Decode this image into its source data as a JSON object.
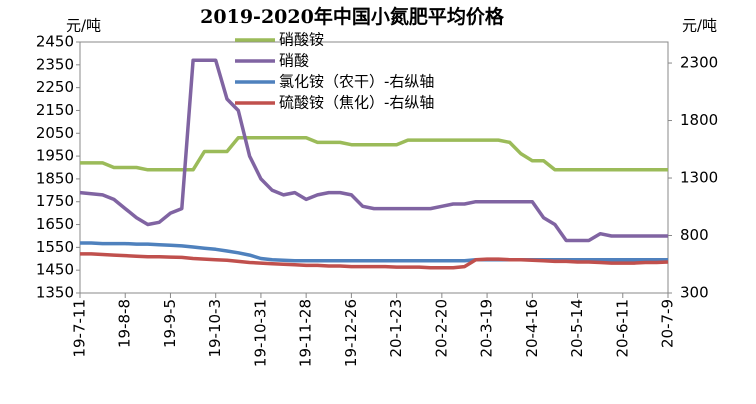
{
  "chart_data": {
    "type": "line",
    "title": "2019-2020年中国小氮肥平均价格",
    "y_unit": "元/吨",
    "y2_unit": "元/吨",
    "categories": [
      "19-7-11",
      null,
      null,
      null,
      "19-8-8",
      null,
      null,
      null,
      "19-9-5",
      null,
      null,
      null,
      "19-10-3",
      null,
      null,
      null,
      "19-10-31",
      null,
      null,
      null,
      "19-11-28",
      null,
      null,
      null,
      "19-12-26",
      null,
      null,
      null,
      "20-1-23",
      null,
      null,
      null,
      "20-2-20",
      null,
      null,
      null,
      "20-3-19",
      null,
      null,
      null,
      "20-4-16",
      null,
      null,
      null,
      "20-5-14",
      null,
      null,
      null,
      "20-6-11",
      null,
      null,
      null,
      "20-7-9"
    ],
    "ylim": [
      1350,
      2450
    ],
    "yticks": [
      1350,
      1450,
      1550,
      1650,
      1750,
      1850,
      1950,
      2050,
      2150,
      2250,
      2350,
      2450
    ],
    "y2lim": [
      300,
      2483
    ],
    "y2ticks": [
      300,
      800,
      1300,
      1800,
      2300
    ],
    "grid": false,
    "legend": "top-left",
    "series": [
      {
        "name": "硝酸铵",
        "color": "#9bbb59",
        "values": [
          1920,
          1920,
          1920,
          1900,
          1900,
          1900,
          1890,
          1890,
          1890,
          1890,
          1890,
          1970,
          1970,
          1970,
          2030,
          2030,
          2030,
          2030,
          2030,
          2030,
          2030,
          2010,
          2010,
          2010,
          2000,
          2000,
          2000,
          2000,
          2000,
          2020,
          2020,
          2020,
          2020,
          2020,
          2020,
          2020,
          2020,
          2020,
          2010,
          1960,
          1930,
          1930,
          1890,
          1890,
          1890,
          1890,
          1890,
          1890,
          1890,
          1890,
          1890,
          1890,
          1890
        ]
      },
      {
        "name": "硝酸",
        "color": "#8064a2",
        "values": [
          1790,
          1785,
          1780,
          1760,
          1720,
          1680,
          1650,
          1660,
          1700,
          1720,
          2370,
          2370,
          2370,
          2200,
          2150,
          1950,
          1850,
          1800,
          1780,
          1790,
          1760,
          1780,
          1790,
          1790,
          1780,
          1730,
          1720,
          1720,
          1720,
          1720,
          1720,
          1720,
          1730,
          1740,
          1740,
          1750,
          1750,
          1750,
          1750,
          1750,
          1750,
          1680,
          1650,
          1580,
          1580,
          1580,
          1610,
          1600,
          1600,
          1600,
          1600,
          1600,
          1600
        ]
      },
      {
        "name": "氯化铵（农干）-右纵轴",
        "color": "#4f81bd",
        "axis": "y2",
        "values": [
          735,
          735,
          730,
          730,
          730,
          725,
          725,
          720,
          715,
          710,
          700,
          690,
          680,
          665,
          650,
          630,
          600,
          590,
          585,
          580,
          580,
          580,
          580,
          580,
          580,
          580,
          580,
          580,
          580,
          580,
          580,
          580,
          580,
          580,
          580,
          590,
          590,
          590,
          590,
          590,
          590,
          590,
          590,
          590,
          590,
          590,
          590,
          590,
          590,
          590,
          590,
          590,
          590
        ]
      },
      {
        "name": "硫酸铵（焦化）-右纵轴",
        "color": "#c0504d",
        "axis": "y2",
        "values": [
          640,
          640,
          635,
          630,
          625,
          620,
          615,
          615,
          612,
          610,
          600,
          595,
          590,
          585,
          575,
          565,
          560,
          555,
          550,
          545,
          540,
          540,
          535,
          535,
          530,
          530,
          530,
          530,
          525,
          525,
          525,
          520,
          520,
          520,
          530,
          590,
          595,
          595,
          590,
          590,
          585,
          580,
          575,
          575,
          570,
          570,
          565,
          560,
          560,
          560,
          565,
          565,
          570
        ]
      }
    ]
  }
}
